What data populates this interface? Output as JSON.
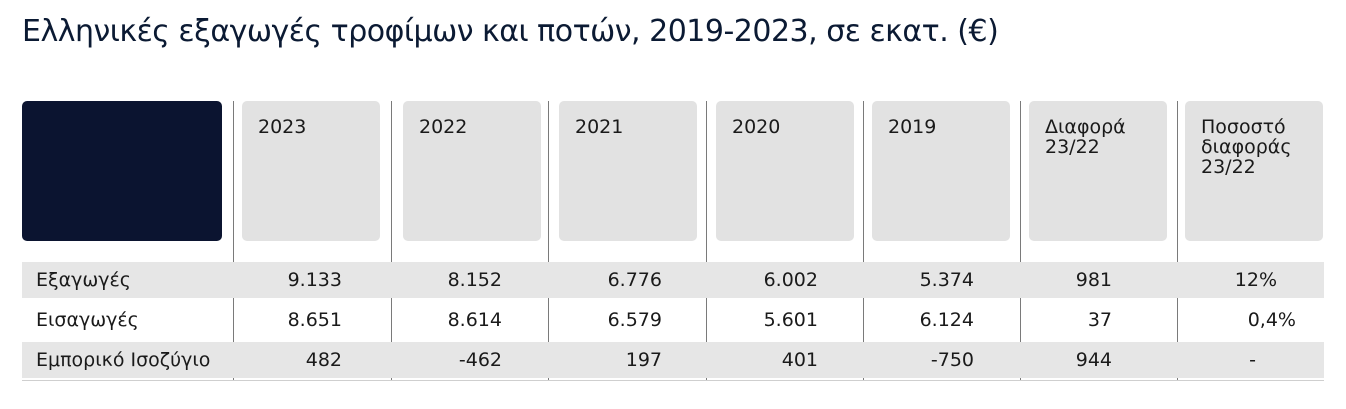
{
  "chart_data": {
    "type": "table",
    "title": "Ελληνικές εξαγωγές τροφίμων και ποτών, 2019-2023, σε εκατ. (€)",
    "columns": [
      "2023",
      "2022",
      "2021",
      "2020",
      "2019",
      "Διαφορά\n23/22",
      "Ποσοστό\nδιαφοράς\n23/22"
    ],
    "rows": [
      {
        "label": "Εξαγωγές",
        "cells": [
          "9.133",
          "8.152",
          "6.776",
          "6.002",
          "5.374",
          "981",
          "12%"
        ]
      },
      {
        "label": "Εισαγωγές",
        "cells": [
          "8.651",
          "8.614",
          "6.579",
          "5.601",
          "6.124",
          "37",
          "0,4%"
        ]
      },
      {
        "label": "Εμπορικό Ισοζύγιο",
        "cells": [
          "482",
          "-462",
          "197",
          "401",
          "-750",
          "944",
          "-"
        ]
      }
    ],
    "colors": {
      "header_dark": "#0b1430",
      "header_gray": "#e2e2e2",
      "row_band": "#e6e6e6"
    }
  }
}
